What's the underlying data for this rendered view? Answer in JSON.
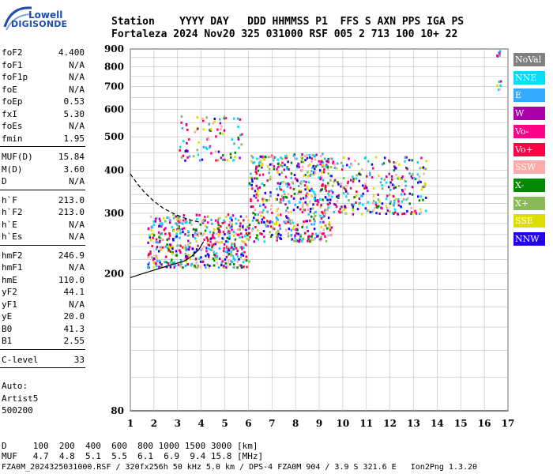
{
  "logo": {
    "line1": "Lowell",
    "line2": "DIGISONDE"
  },
  "header": {
    "row1": "Station    YYYY DAY   DDD HHMMSS P1  FFS S AXN PPS IGA PS",
    "row2": "Fortaleza 2024 Nov20 325 031000 RSF 005 2 713 100 10+ 22"
  },
  "params": {
    "group1": [
      {
        "name": "foF2",
        "value": "4.400"
      },
      {
        "name": "foF1",
        "value": "N/A"
      },
      {
        "name": "foF1p",
        "value": "N/A"
      },
      {
        "name": "foE",
        "value": "N/A"
      },
      {
        "name": "foEp",
        "value": "0.53"
      },
      {
        "name": "fxI",
        "value": "5.30"
      },
      {
        "name": "foEs",
        "value": "N/A"
      },
      {
        "name": "fmin",
        "value": "1.95"
      }
    ],
    "group2": [
      {
        "name": "MUF(D)",
        "value": "15.84"
      },
      {
        "name": "M(D)",
        "value": "3.60"
      },
      {
        "name": "D",
        "value": "N/A"
      }
    ],
    "group3": [
      {
        "name": "h`F",
        "value": "213.0"
      },
      {
        "name": "h`F2",
        "value": "213.0"
      },
      {
        "name": "h`E",
        "value": "N/A"
      },
      {
        "name": "h`Es",
        "value": "N/A"
      }
    ],
    "group4": [
      {
        "name": "hmF2",
        "value": "246.9"
      },
      {
        "name": "hmF1",
        "value": "N/A"
      },
      {
        "name": "hmE",
        "value": "110.0"
      },
      {
        "name": "yF2",
        "value": "44.1"
      },
      {
        "name": "yF1",
        "value": "N/A"
      },
      {
        "name": "yE",
        "value": "20.0"
      },
      {
        "name": "B0",
        "value": "41.3"
      },
      {
        "name": "B1",
        "value": "2.55"
      }
    ],
    "group5": [
      {
        "name": "C-level",
        "value": "33"
      }
    ],
    "auto": [
      "Auto:",
      "Artist5",
      "500200"
    ]
  },
  "legend": [
    {
      "label": "NoVal",
      "color": "#808080"
    },
    {
      "label": "NNE",
      "color": "#00ddff"
    },
    {
      "label": "E",
      "color": "#33aaff"
    },
    {
      "label": "W",
      "color": "#aa00aa"
    },
    {
      "label": "Vo-",
      "color": "#ff0088"
    },
    {
      "label": "Vo+",
      "color": "#ff0044"
    },
    {
      "label": "SSW",
      "color": "#ffaaaa"
    },
    {
      "label": "X-",
      "color": "#008800"
    },
    {
      "label": "X+",
      "color": "#88bb55"
    },
    {
      "label": "SSE",
      "color": "#dddd00"
    },
    {
      "label": "NNW",
      "color": "#2200ee"
    }
  ],
  "footer": {
    "d_row": "D     100  200  400  600  800 1000 1500 3000 [km]",
    "muf_row": "MUF   4.7  4.8  5.1  5.5  6.1  6.9  9.4 15.8 [MHz]",
    "info": "FZA0M_2024325031000.RSF / 320fx256h 50 kHz 5.0 km / DPS-4 FZA0M 904 / 3.9 S 321.6 E   Ion2Png 1.3.20"
  },
  "chart_data": {
    "type": "scatter",
    "xlim": [
      1,
      17
    ],
    "ylim": [
      80,
      900
    ],
    "y_scale": "log",
    "x_ticks": [
      1,
      2,
      3,
      4,
      5,
      6,
      7,
      8,
      9,
      10,
      11,
      12,
      13,
      14,
      15,
      16,
      17
    ],
    "y_ticks": [
      80,
      200,
      300,
      400,
      500,
      600,
      700,
      800,
      900
    ],
    "grid": true,
    "legend_position": "right",
    "virtual_height_profile": [
      [
        1.0,
        195
      ],
      [
        1.5,
        200
      ],
      [
        2.0,
        205
      ],
      [
        2.5,
        210
      ],
      [
        3.0,
        215
      ],
      [
        3.3,
        218
      ],
      [
        3.6,
        225
      ],
      [
        3.9,
        235
      ],
      [
        4.1,
        248
      ]
    ],
    "true_height_profile": [
      [
        1.0,
        390
      ],
      [
        1.3,
        365
      ],
      [
        1.6,
        345
      ],
      [
        2.0,
        325
      ],
      [
        2.4,
        310
      ],
      [
        2.8,
        300
      ],
      [
        3.2,
        292
      ],
      [
        3.6,
        286
      ],
      [
        4.0,
        282
      ]
    ],
    "echo_clusters": [
      {
        "x": [
          1.7,
          6.0
        ],
        "y": [
          210,
          300
        ],
        "density": 520
      },
      {
        "x": [
          3.0,
          5.7
        ],
        "y": [
          430,
          580
        ],
        "density": 90
      },
      {
        "x": [
          6.0,
          9.5
        ],
        "y": [
          250,
          450
        ],
        "density": 520
      },
      {
        "x": [
          9.0,
          13.5
        ],
        "y": [
          300,
          440
        ],
        "density": 300
      },
      {
        "x": [
          16.5,
          16.7
        ],
        "y": [
          860,
          900
        ],
        "density": 6
      },
      {
        "x": [
          16.5,
          16.7
        ],
        "y": [
          690,
          740
        ],
        "density": 6
      }
    ]
  }
}
